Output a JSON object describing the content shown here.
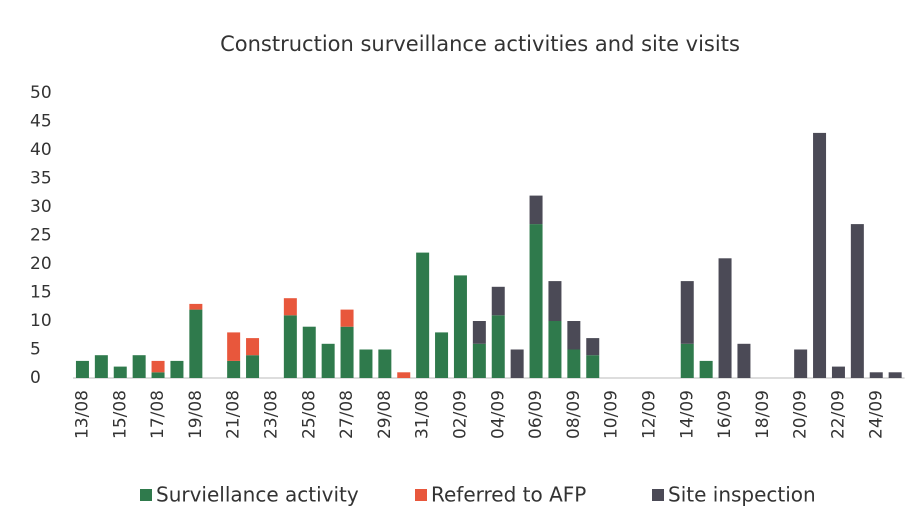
{
  "chart_data": {
    "type": "bar",
    "stacked": true,
    "title": "Construction surveillance activities and site visits",
    "categories": [
      "13/08",
      null,
      "15/08",
      null,
      "17/08",
      null,
      "19/08",
      null,
      "21/08",
      null,
      "23/08",
      null,
      "25/08",
      null,
      "27/08",
      null,
      "29/08",
      null,
      "31/08",
      null,
      "02/09",
      null,
      "04/09",
      null,
      "06/09",
      null,
      "08/09",
      null,
      "10/09",
      null,
      "12/09",
      null,
      "14/09",
      null,
      "16/09",
      null,
      "18/09",
      null,
      "20/09",
      null,
      "22/09",
      null,
      "24/09",
      null
    ],
    "series": [
      {
        "name": "Surviellance activity",
        "color": "#2f7a4c",
        "values": [
          3,
          4,
          2,
          4,
          1,
          3,
          12,
          0,
          3,
          4,
          0,
          11,
          9,
          6,
          9,
          5,
          5,
          0,
          22,
          8,
          18,
          6,
          11,
          0,
          27,
          10,
          5,
          4,
          0,
          0,
          0,
          0,
          6,
          3,
          0,
          0,
          0,
          0,
          0,
          0,
          0,
          0,
          0,
          0
        ]
      },
      {
        "name": "Referred to AFP",
        "color": "#e8573c",
        "values": [
          0,
          0,
          0,
          0,
          2,
          0,
          1,
          0,
          5,
          3,
          0,
          3,
          0,
          0,
          3,
          0,
          0,
          1,
          0,
          0,
          0,
          0,
          0,
          0,
          0,
          0,
          0,
          0,
          0,
          0,
          0,
          0,
          0,
          0,
          0,
          0,
          0,
          0,
          0,
          0,
          0,
          0,
          0,
          0
        ]
      },
      {
        "name": "Site inspection",
        "color": "#4b4a56",
        "values": [
          0,
          0,
          0,
          0,
          0,
          0,
          0,
          0,
          0,
          0,
          0,
          0,
          0,
          0,
          0,
          0,
          0,
          0,
          0,
          0,
          0,
          4,
          5,
          5,
          5,
          7,
          5,
          3,
          0,
          0,
          0,
          0,
          11,
          0,
          21,
          6,
          0,
          0,
          5,
          43,
          2,
          27,
          1,
          1
        ]
      }
    ],
    "ylim": [
      0,
      50
    ],
    "yticks": [
      0,
      5,
      10,
      15,
      20,
      25,
      30,
      35,
      40,
      45,
      50
    ],
    "grid": false,
    "legend": "bottom"
  }
}
